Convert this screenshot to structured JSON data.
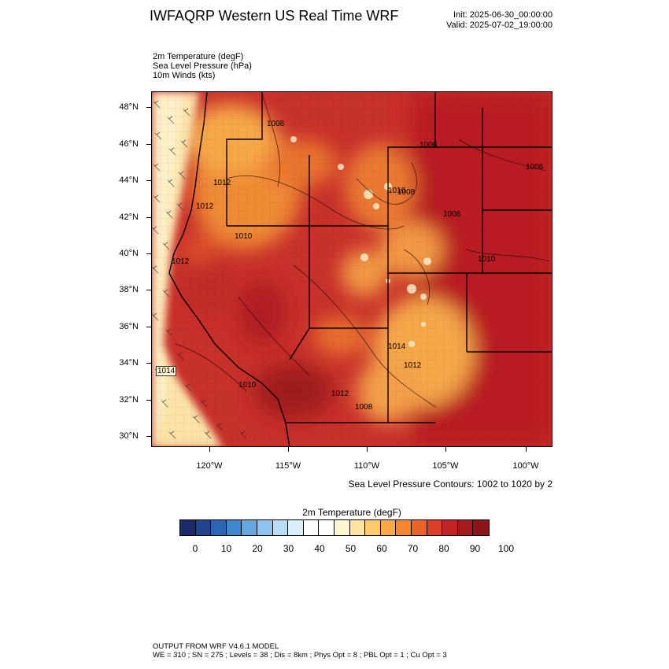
{
  "header": {
    "title": "IWFAQRP Western US Real Time WRF",
    "init": "Init: 2025-06-30_00:00:00",
    "valid": "Valid: 2025-07-02_19:00:00"
  },
  "fields": {
    "temp": "2m Temperature   (degF)",
    "slp": "Sea Level Pressure   (hPa)",
    "winds": "10m Winds   (kts)"
  },
  "map": {
    "lat_labels": [
      "48°N",
      "46°N",
      "44°N",
      "42°N",
      "40°N",
      "38°N",
      "36°N",
      "34°N",
      "32°N",
      "30°N"
    ],
    "lon_labels": [
      "120°W",
      "115°W",
      "110°W",
      "105°W",
      "100°W"
    ],
    "pressure_labels": [
      "1008",
      "1006",
      "1012",
      "1010",
      "1012",
      "1008",
      "1006",
      "1008",
      "1010",
      "1012",
      "1010",
      "1014",
      "1010",
      "1014",
      "1012",
      "1008",
      "1012"
    ],
    "slp_note": "Sea Level Pressure Contours: 1002 to 1020 by 2"
  },
  "colorbar": {
    "title": "2m Temperature  (degF)",
    "labels": [
      "0",
      "10",
      "20",
      "30",
      "40",
      "50",
      "60",
      "70",
      "80",
      "90",
      "100"
    ],
    "colors": [
      "#1b2a68",
      "#1f4591",
      "#2a66b5",
      "#3f87cc",
      "#63a8de",
      "#8dc6ec",
      "#b8def5",
      "#dcf0fb",
      "#ffffff",
      "#ffffff",
      "#fff6d0",
      "#ffe3a0",
      "#fdc96b",
      "#fba846",
      "#f7862f",
      "#ed6228",
      "#dd3e26",
      "#c42424",
      "#a8191e",
      "#8c1318"
    ]
  },
  "footer": {
    "line1": "OUTPUT FROM WRF V4.6.1 MODEL",
    "line2": "WE = 310 ; SN = 275 ; Levels = 38 ; Dis = 8km ; Phys Opt = 8 ; PBL Opt = 1 ; Cu Opt = 3"
  }
}
